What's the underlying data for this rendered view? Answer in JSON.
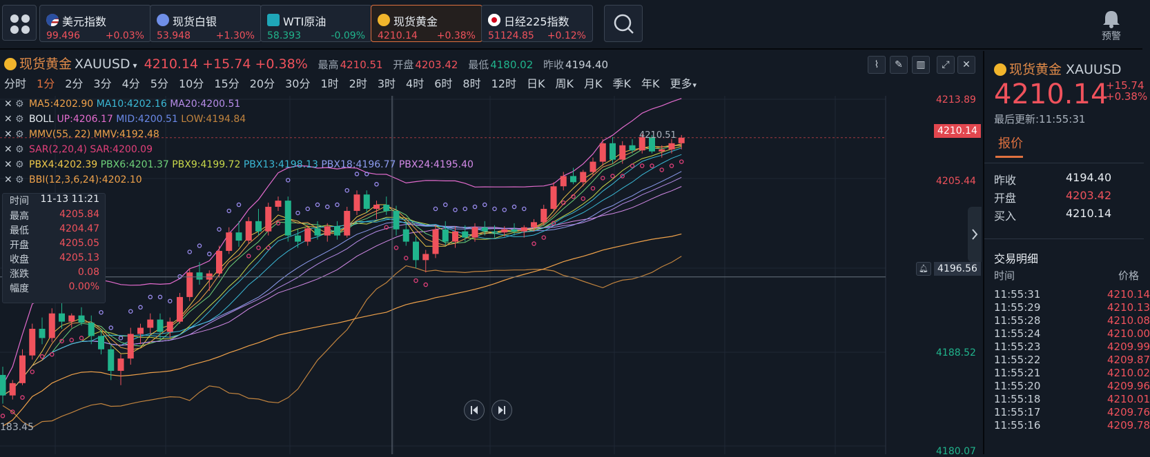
{
  "tickers": [
    {
      "name": "美元指数",
      "price": "99.496",
      "change": "+0.03%",
      "dir": "up",
      "flag": "us"
    },
    {
      "name": "现货白银",
      "price": "53.948",
      "change": "+1.30%",
      "dir": "up",
      "flag": "silver"
    },
    {
      "name": "WTI原油",
      "price": "58.393",
      "change": "-0.09%",
      "dir": "down",
      "flag": "oil"
    },
    {
      "name": "现货黄金",
      "price": "4210.14",
      "change": "+0.38%",
      "dir": "up",
      "flag": "gold",
      "active": true
    },
    {
      "name": "日经225指数",
      "price": "51124.85",
      "change": "+0.12%",
      "dir": "up",
      "flag": "jp"
    }
  ],
  "alert_label": "预警",
  "header": {
    "name": "现货黄金",
    "code": "XAUUSD",
    "price": "4210.14",
    "change": "+15.74",
    "change_pct": "+0.38%",
    "high_label": "最高",
    "high": "4210.51",
    "open_label": "开盘",
    "open": "4203.42",
    "low_label": "最低",
    "low": "4180.02",
    "prev_label": "昨收",
    "prev": "4194.40"
  },
  "periods": [
    "分时",
    "1分",
    "2分",
    "3分",
    "4分",
    "5分",
    "10分",
    "15分",
    "20分",
    "30分",
    "1时",
    "2时",
    "3时",
    "4时",
    "6时",
    "8时",
    "12时",
    "日K",
    "周K",
    "月K",
    "季K",
    "年K",
    "更多"
  ],
  "selected_period": "1分",
  "legend": {
    "ma": {
      "ma5": "MA5:4202.90",
      "ma10": "MA10:4202.16",
      "ma20": "MA20:4200.51"
    },
    "boll": {
      "name": "BOLL",
      "up": "UP:4206.17",
      "mid": "MID:4200.51",
      "low": "LOW:4194.84"
    },
    "mmv": "MMV(55, 22) MMV:4192.48",
    "sar": "SAR(2,20,4) SAR:4200.09",
    "pbx": [
      "PBX4:4202.39",
      "PBX6:4201.37",
      "PBX9:4199.72",
      "PBX13:4198.13",
      "PBX18:4196.77",
      "PBX24:4195.40"
    ],
    "bbi": "BBI(12,3,6,24):4202.10"
  },
  "tooltip": {
    "time_label": "时间",
    "time": "11-13 11:21",
    "high_label": "最高",
    "high": "4205.84",
    "low_label": "最低",
    "low": "4204.47",
    "open_label": "开盘",
    "open": "4205.05",
    "close_label": "收盘",
    "close": "4205.13",
    "chg_label": "涨跌",
    "chg": "0.08",
    "amp_label": "幅度",
    "amp": "0.00%"
  },
  "axis": {
    "top": "4213.89",
    "current": "4210.14",
    "mid": "4205.44",
    "crosshair": "4196.56",
    "low": "4188.52",
    "bottom": "4180.07",
    "left_bottom": "183.45",
    "high_marker": "4210.51"
  },
  "colors": {
    "up": "#f0525c",
    "down": "#20b48c",
    "accent": "#e0713f"
  },
  "chart_data": {
    "type": "candlestick",
    "title": "",
    "ylim": [
      4180.07,
      4213.89
    ],
    "ohlc": [
      [
        4187.0,
        4187.8,
        4184.2,
        4185.0
      ],
      [
        4185.0,
        4186.5,
        4184.6,
        4186.2
      ],
      [
        4186.2,
        4189.5,
        4186.0,
        4188.9
      ],
      [
        4188.9,
        4192.0,
        4188.5,
        4191.5
      ],
      [
        4191.5,
        4192.6,
        4190.0,
        4190.6
      ],
      [
        4190.6,
        4193.5,
        4190.2,
        4193.0
      ],
      [
        4193.0,
        4194.5,
        4191.5,
        4192.2
      ],
      [
        4192.2,
        4193.0,
        4191.6,
        4192.8
      ],
      [
        4192.8,
        4193.6,
        4191.8,
        4192.1
      ],
      [
        4192.1,
        4192.8,
        4190.0,
        4190.8
      ],
      [
        4190.8,
        4191.5,
        4189.0,
        4189.5
      ],
      [
        4189.5,
        4190.0,
        4186.5,
        4187.4
      ],
      [
        4187.4,
        4189.0,
        4186.0,
        4188.6
      ],
      [
        4188.6,
        4191.6,
        4188.0,
        4191.0
      ],
      [
        4191.0,
        4192.0,
        4190.0,
        4191.6
      ],
      [
        4191.6,
        4193.0,
        4191.0,
        4192.4
      ],
      [
        4192.4,
        4193.0,
        4190.5,
        4191.2
      ],
      [
        4191.2,
        4192.6,
        4190.6,
        4192.2
      ],
      [
        4192.2,
        4195.0,
        4192.0,
        4194.6
      ],
      [
        4194.6,
        4197.4,
        4194.2,
        4197.0
      ],
      [
        4197.0,
        4198.0,
        4195.8,
        4196.3
      ],
      [
        4196.3,
        4197.2,
        4195.2,
        4196.9
      ],
      [
        4196.9,
        4199.6,
        4196.5,
        4199.1
      ],
      [
        4199.1,
        4201.4,
        4198.8,
        4200.9
      ],
      [
        4200.9,
        4202.0,
        4199.5,
        4200.1
      ],
      [
        4200.1,
        4202.4,
        4199.8,
        4202.0
      ],
      [
        4202.0,
        4203.2,
        4200.6,
        4201.0
      ],
      [
        4201.0,
        4203.8,
        4200.6,
        4203.4
      ],
      [
        4203.4,
        4204.4,
        4203.0,
        4204.0
      ],
      [
        4204.0,
        4204.4,
        4200.0,
        4200.6
      ],
      [
        4200.6,
        4201.2,
        4199.4,
        4200.0
      ],
      [
        4200.0,
        4201.6,
        4199.6,
        4201.3
      ],
      [
        4201.3,
        4202.0,
        4200.2,
        4200.6
      ],
      [
        4200.6,
        4201.8,
        4200.0,
        4201.5
      ],
      [
        4201.5,
        4202.0,
        4200.2,
        4200.6
      ],
      [
        4200.6,
        4203.4,
        4200.4,
        4203.0
      ],
      [
        4203.0,
        4205.0,
        4202.6,
        4204.6
      ],
      [
        4204.6,
        4205.0,
        4202.8,
        4203.2
      ],
      [
        4203.2,
        4204.0,
        4202.2,
        4203.6
      ],
      [
        4203.6,
        4204.4,
        4202.6,
        4203.0
      ],
      [
        4203.0,
        4203.5,
        4200.6,
        4201.2
      ],
      [
        4201.2,
        4202.0,
        4199.6,
        4200.0
      ],
      [
        4200.0,
        4200.5,
        4197.4,
        4198.2
      ],
      [
        4198.2,
        4199.2,
        4197.0,
        4198.8
      ],
      [
        4198.8,
        4201.6,
        4198.4,
        4201.2
      ],
      [
        4201.2,
        4202.0,
        4199.6,
        4200.0
      ],
      [
        4200.0,
        4201.5,
        4199.4,
        4201.0
      ],
      [
        4201.0,
        4201.6,
        4200.0,
        4200.4
      ],
      [
        4200.4,
        4201.8,
        4200.0,
        4201.4
      ],
      [
        4201.4,
        4202.0,
        4200.6,
        4201.0
      ],
      [
        4201.0,
        4201.6,
        4200.4,
        4200.9
      ],
      [
        4200.9,
        4201.5,
        4200.5,
        4201.2
      ],
      [
        4201.2,
        4201.8,
        4200.6,
        4201.0
      ],
      [
        4201.0,
        4201.6,
        4200.4,
        4201.4
      ],
      [
        4201.4,
        4202.2,
        4201.0,
        4201.9
      ],
      [
        4201.9,
        4203.6,
        4201.6,
        4203.2
      ],
      [
        4203.2,
        4205.8,
        4203.0,
        4205.4
      ],
      [
        4205.4,
        4206.8,
        4205.0,
        4206.4
      ],
      [
        4206.4,
        4207.2,
        4205.6,
        4205.8
      ],
      [
        4205.8,
        4207.0,
        4205.4,
        4206.8
      ],
      [
        4206.8,
        4208.2,
        4206.4,
        4207.8
      ],
      [
        4207.8,
        4210.0,
        4207.4,
        4209.6
      ],
      [
        4209.6,
        4210.2,
        4207.6,
        4208.0
      ],
      [
        4208.0,
        4209.8,
        4207.6,
        4209.4
      ],
      [
        4209.4,
        4210.0,
        4208.6,
        4208.9
      ],
      [
        4208.9,
        4210.51,
        4208.6,
        4210.2
      ],
      [
        4210.2,
        4210.4,
        4208.6,
        4208.8
      ],
      [
        4208.8,
        4209.4,
        4208.2,
        4209.0
      ],
      [
        4209.0,
        4210.0,
        4208.6,
        4209.6
      ],
      [
        4209.6,
        4210.4,
        4209.0,
        4210.14
      ]
    ]
  },
  "quote": {
    "name": "现货黄金",
    "code": "XAUUSD",
    "price": "4210.14",
    "change": "+15.74",
    "change_pct": "+0.38%",
    "updated": "最后更新:11:55:31",
    "tab": "报价",
    "rows": [
      {
        "k": "昨收",
        "v": "4194.40",
        "dir": ""
      },
      {
        "k": "开盘",
        "v": "4203.42",
        "dir": "up"
      },
      {
        "k": "买入",
        "v": "4210.14",
        "dir": ""
      }
    ],
    "detail_title": "交易明细",
    "col_time": "时间",
    "col_price": "价格",
    "trades": [
      [
        "11:55:31",
        "4210.14"
      ],
      [
        "11:55:29",
        "4210.13"
      ],
      [
        "11:55:28",
        "4210.08"
      ],
      [
        "11:55:24",
        "4210.00"
      ],
      [
        "11:55:23",
        "4209.99"
      ],
      [
        "11:55:22",
        "4209.87"
      ],
      [
        "11:55:21",
        "4210.02"
      ],
      [
        "11:55:20",
        "4209.96"
      ],
      [
        "11:55:18",
        "4210.01"
      ],
      [
        "11:55:17",
        "4209.76"
      ],
      [
        "11:55:16",
        "4209.78"
      ]
    ]
  }
}
